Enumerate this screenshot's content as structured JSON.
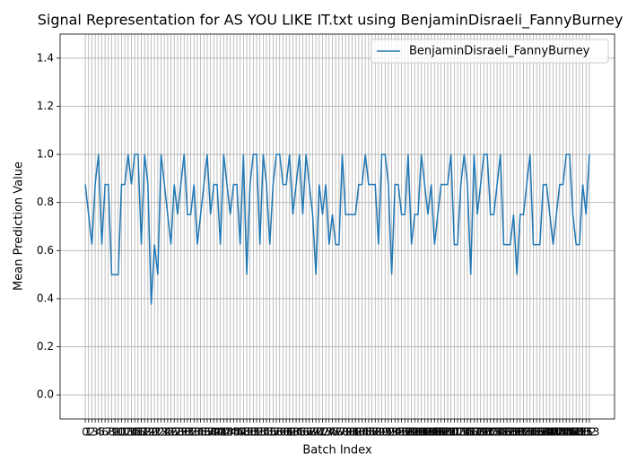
{
  "chart_data": {
    "type": "line",
    "title": "Signal Representation for AS YOU LIKE IT.txt using BenjaminDisraeli_FannyBurney",
    "xlabel": "Batch Index",
    "ylabel": "Mean Prediction Value",
    "x": [
      0,
      1,
      2,
      3,
      4,
      5,
      6,
      7,
      8,
      9,
      10,
      11,
      12,
      13,
      14,
      15,
      16,
      17,
      18,
      19,
      20,
      21,
      22,
      23,
      24,
      25,
      26,
      27,
      28,
      29,
      30,
      31,
      32,
      33,
      34,
      35,
      36,
      37,
      38,
      39,
      40,
      41,
      42,
      43,
      44,
      45,
      46,
      47,
      48,
      49,
      50,
      51,
      52,
      53,
      54,
      55,
      56,
      57,
      58,
      59,
      60,
      61,
      62,
      63,
      64,
      65,
      66,
      67,
      68,
      69,
      70,
      71,
      72,
      73,
      74,
      75,
      76,
      77,
      78,
      79,
      80,
      81,
      82,
      83,
      84,
      85,
      86,
      87,
      88,
      89,
      90,
      91,
      92,
      93,
      94,
      95,
      96,
      97,
      98,
      99,
      100,
      101,
      102,
      103,
      104,
      105,
      106,
      107,
      108,
      109,
      110,
      111,
      112,
      113,
      114,
      115,
      116,
      117,
      118,
      119,
      120,
      121,
      122,
      123,
      124,
      125,
      126,
      127,
      128,
      129,
      130,
      131,
      132,
      133,
      134,
      135,
      136,
      137,
      138,
      139,
      140,
      141,
      142,
      143,
      144,
      145,
      146,
      147,
      148,
      149,
      150,
      151,
      152,
      153
    ],
    "series": [
      {
        "name": "BenjaminDisraeli_FannyBurney",
        "color": "#1f77b4",
        "values": [
          0.875,
          0.75,
          0.625,
          0.875,
          1,
          0.625,
          0.875,
          0.875,
          0.5,
          0.5,
          0.5,
          0.875,
          0.875,
          1,
          0.875,
          1,
          1,
          0.625,
          1,
          0.875,
          0.375,
          0.625,
          0.5,
          1,
          0.875,
          0.75,
          0.625,
          0.875,
          0.75,
          0.875,
          1,
          0.75,
          0.75,
          0.875,
          0.625,
          0.75,
          0.875,
          1,
          0.75,
          0.875,
          0.875,
          0.625,
          1,
          0.875,
          0.75,
          0.875,
          0.875,
          0.625,
          1,
          0.5,
          0.875,
          1,
          1,
          0.625,
          1,
          0.875,
          0.625,
          0.875,
          1,
          1,
          0.875,
          0.875,
          1,
          0.75,
          0.875,
          1,
          0.75,
          1,
          0.875,
          0.75,
          0.5,
          0.875,
          0.75,
          0.875,
          0.625,
          0.75,
          0.625,
          0.625,
          1,
          0.75,
          0.75,
          0.75,
          0.75,
          0.875,
          0.875,
          1,
          0.875,
          0.875,
          0.875,
          0.625,
          1,
          1,
          0.875,
          0.5,
          0.875,
          0.875,
          0.75,
          0.75,
          1,
          0.625,
          0.75,
          0.75,
          1,
          0.875,
          0.75,
          0.875,
          0.625,
          0.75,
          0.875,
          0.875,
          0.875,
          1,
          0.625,
          0.625,
          0.875,
          1,
          0.875,
          0.5,
          1,
          0.75,
          0.875,
          1,
          1,
          0.75,
          0.75,
          0.875,
          1,
          0.625,
          0.625,
          0.625,
          0.75,
          0.5,
          0.75,
          0.75,
          0.875,
          1,
          0.625,
          0.625,
          0.625,
          0.875,
          0.875,
          0.75,
          0.625,
          0.75,
          0.875,
          0.875,
          1,
          1,
          0.75,
          0.625,
          0.625,
          0.875,
          0.75,
          1
        ]
      }
    ],
    "xlim": [
      -7.65,
      160.65
    ],
    "xticks": [
      0,
      1,
      2,
      3,
      4,
      5,
      6,
      7,
      8,
      9,
      10,
      11,
      12,
      13,
      14,
      15,
      16,
      17,
      18,
      19,
      20,
      21,
      22,
      23,
      24,
      25,
      26,
      27,
      28,
      29,
      30,
      31,
      32,
      33,
      34,
      35,
      36,
      37,
      38,
      39,
      40,
      41,
      42,
      43,
      44,
      45,
      46,
      47,
      48,
      49,
      50,
      51,
      52,
      53,
      54,
      55,
      56,
      57,
      58,
      59,
      60,
      61,
      62,
      63,
      64,
      65,
      66,
      67,
      68,
      69,
      70,
      71,
      72,
      73,
      74,
      75,
      76,
      77,
      78,
      79,
      80,
      81,
      82,
      83,
      84,
      85,
      86,
      87,
      88,
      89,
      90,
      91,
      92,
      93,
      94,
      95,
      96,
      97,
      98,
      99,
      100,
      101,
      102,
      103,
      104,
      105,
      106,
      107,
      108,
      109,
      110,
      111,
      112,
      113,
      114,
      115,
      116,
      117,
      118,
      119,
      120,
      121,
      122,
      123,
      124,
      125,
      126,
      127,
      128,
      129,
      130,
      131,
      132,
      133,
      134,
      135,
      136,
      137,
      138,
      139,
      140,
      141,
      142,
      143,
      144,
      145,
      146,
      147,
      148,
      149,
      150,
      151,
      152,
      153
    ],
    "ylim": [
      -0.1,
      1.5
    ],
    "yticks": [
      {
        "value": 0,
        "label": "0.0"
      },
      0.2,
      0.4,
      0.6,
      0.8,
      {
        "value": 1,
        "label": "1.0"
      },
      1.2,
      1.4
    ],
    "grid": true,
    "legend": "upper right"
  }
}
